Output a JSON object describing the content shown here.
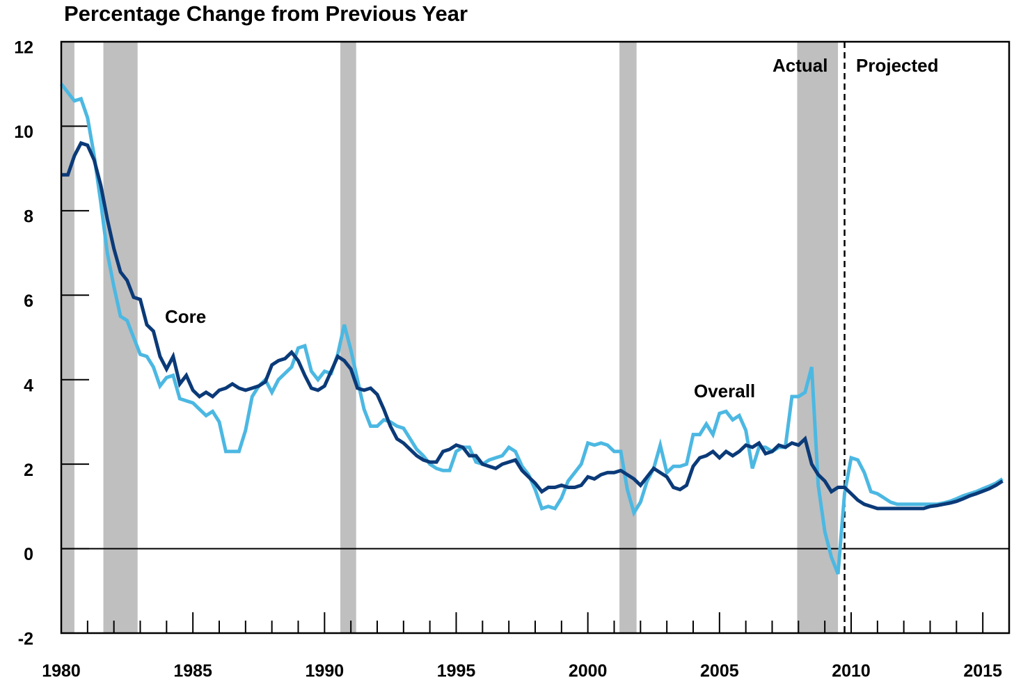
{
  "chart_data": {
    "type": "line",
    "title": "Percentage Change from Previous Year",
    "x": [
      1980,
      1980.25,
      1980.5,
      1980.75,
      1981,
      1981.25,
      1981.5,
      1981.75,
      1982,
      1982.25,
      1982.5,
      1982.75,
      1983,
      1983.25,
      1983.5,
      1983.75,
      1984,
      1984.25,
      1984.5,
      1984.75,
      1985,
      1985.25,
      1985.5,
      1985.75,
      1986,
      1986.25,
      1986.5,
      1986.75,
      1987,
      1987.25,
      1987.5,
      1987.75,
      1988,
      1988.25,
      1988.5,
      1988.75,
      1989,
      1989.25,
      1989.5,
      1989.75,
      1990,
      1990.25,
      1990.5,
      1990.75,
      1991,
      1991.25,
      1991.5,
      1991.75,
      1992,
      1992.25,
      1992.5,
      1992.75,
      1993,
      1993.25,
      1993.5,
      1993.75,
      1994,
      1994.25,
      1994.5,
      1994.75,
      1995,
      1995.25,
      1995.5,
      1995.75,
      1996,
      1996.25,
      1996.5,
      1996.75,
      1997,
      1997.25,
      1997.5,
      1997.75,
      1998,
      1998.25,
      1998.5,
      1998.75,
      1999,
      1999.25,
      1999.5,
      1999.75,
      2000,
      2000.25,
      2000.5,
      2000.75,
      2001,
      2001.25,
      2001.5,
      2001.75,
      2002,
      2002.25,
      2002.5,
      2002.75,
      2003,
      2003.25,
      2003.5,
      2003.75,
      2004,
      2004.25,
      2004.5,
      2004.75,
      2005,
      2005.25,
      2005.5,
      2005.75,
      2006,
      2006.25,
      2006.5,
      2006.75,
      2007,
      2007.25,
      2007.5,
      2007.75,
      2008,
      2008.25,
      2008.5,
      2008.75,
      2009,
      2009.25,
      2009.5,
      2009.75,
      2010,
      2010.25,
      2010.5,
      2010.75,
      2011,
      2011.25,
      2011.5,
      2011.75,
      2012,
      2012.25,
      2012.5,
      2012.75,
      2013,
      2013.25,
      2013.5,
      2013.75,
      2014,
      2014.25,
      2014.5,
      2014.75,
      2015,
      2015.25,
      2015.5,
      2015.75
    ],
    "series": [
      {
        "name": "Overall",
        "color": "#4cb8e2",
        "values": [
          11.0,
          10.8,
          10.6,
          10.65,
          10.2,
          9.3,
          8.2,
          7.0,
          6.2,
          5.5,
          5.4,
          5.0,
          4.6,
          4.55,
          4.3,
          3.85,
          4.05,
          4.1,
          3.55,
          3.5,
          3.45,
          3.3,
          3.15,
          3.25,
          3.0,
          2.3,
          2.3,
          2.3,
          2.8,
          3.6,
          3.85,
          4.0,
          3.7,
          4.0,
          4.15,
          4.3,
          4.75,
          4.8,
          4.2,
          4.0,
          4.2,
          4.15,
          4.6,
          5.3,
          4.7,
          4.0,
          3.3,
          2.9,
          2.9,
          3.05,
          3.0,
          2.9,
          2.85,
          2.6,
          2.35,
          2.2,
          2.0,
          1.9,
          1.85,
          1.85,
          2.3,
          2.4,
          2.4,
          2.05,
          2.0,
          2.1,
          2.15,
          2.2,
          2.4,
          2.3,
          1.95,
          1.75,
          1.4,
          0.95,
          1.0,
          0.95,
          1.2,
          1.6,
          1.8,
          2.0,
          2.5,
          2.45,
          2.5,
          2.45,
          2.3,
          2.3,
          1.4,
          0.85,
          1.1,
          1.6,
          1.9,
          2.45,
          1.8,
          1.95,
          1.95,
          2.0,
          2.7,
          2.7,
          2.95,
          2.7,
          3.2,
          3.25,
          3.05,
          3.15,
          2.8,
          1.9,
          2.4,
          2.4,
          2.3,
          2.4,
          2.4,
          3.6,
          3.6,
          3.7,
          4.3,
          1.5,
          0.4,
          -0.2,
          -0.6,
          1.3,
          2.15,
          2.1,
          1.8,
          1.35,
          1.3,
          1.2,
          1.1,
          1.05,
          1.05,
          1.05,
          1.05,
          1.05,
          1.05,
          1.05,
          1.08,
          1.12,
          1.18,
          1.25,
          1.3,
          1.35,
          1.42,
          1.48,
          1.55,
          1.65
        ]
      },
      {
        "name": "Core",
        "color": "#0b3a78",
        "values": [
          8.85,
          8.85,
          9.3,
          9.6,
          9.55,
          9.2,
          8.6,
          7.8,
          7.1,
          6.55,
          6.35,
          5.95,
          5.9,
          5.3,
          5.15,
          4.55,
          4.25,
          4.55,
          3.9,
          4.1,
          3.75,
          3.6,
          3.7,
          3.6,
          3.75,
          3.8,
          3.9,
          3.8,
          3.75,
          3.8,
          3.85,
          3.95,
          4.35,
          4.45,
          4.5,
          4.65,
          4.45,
          4.1,
          3.8,
          3.75,
          3.85,
          4.2,
          4.55,
          4.45,
          4.25,
          3.8,
          3.75,
          3.8,
          3.65,
          3.3,
          2.9,
          2.6,
          2.5,
          2.35,
          2.2,
          2.1,
          2.05,
          2.05,
          2.3,
          2.35,
          2.45,
          2.4,
          2.2,
          2.2,
          2.0,
          1.95,
          1.9,
          2.0,
          2.05,
          2.1,
          1.85,
          1.7,
          1.55,
          1.35,
          1.45,
          1.45,
          1.5,
          1.45,
          1.45,
          1.5,
          1.7,
          1.65,
          1.75,
          1.8,
          1.8,
          1.85,
          1.75,
          1.65,
          1.5,
          1.7,
          1.9,
          1.8,
          1.7,
          1.45,
          1.4,
          1.5,
          1.95,
          2.15,
          2.2,
          2.3,
          2.15,
          2.3,
          2.2,
          2.3,
          2.45,
          2.4,
          2.5,
          2.25,
          2.3,
          2.45,
          2.4,
          2.5,
          2.45,
          2.6,
          2.0,
          1.75,
          1.6,
          1.35,
          1.45,
          1.45,
          1.3,
          1.15,
          1.05,
          1.0,
          0.95,
          0.95,
          0.95,
          0.95,
          0.95,
          0.95,
          0.95,
          0.95,
          1.0,
          1.02,
          1.05,
          1.08,
          1.12,
          1.18,
          1.25,
          1.3,
          1.36,
          1.42,
          1.5,
          1.6
        ]
      }
    ],
    "xlim": [
      1980,
      2016
    ],
    "xticks": [
      1980,
      1985,
      1990,
      1995,
      2000,
      2005,
      2010,
      2015
    ],
    "xminorticks": [
      1981,
      1982,
      1983,
      1984,
      1986,
      1987,
      1988,
      1989,
      1991,
      1992,
      1993,
      1994,
      1996,
      1997,
      1998,
      1999,
      2001,
      2002,
      2003,
      2004,
      2006,
      2007,
      2008,
      2009,
      2011,
      2012,
      2013,
      2014
    ],
    "ylim": [
      -2,
      12
    ],
    "yticks": [
      -2,
      0,
      2,
      4,
      6,
      8,
      10,
      12
    ],
    "recessions": [
      [
        1980.0,
        1980.5
      ],
      [
        1981.6,
        1982.9
      ],
      [
        1990.6,
        1991.2
      ],
      [
        2001.2,
        2001.85
      ],
      [
        2007.95,
        2009.5
      ]
    ],
    "recession_color": "#bfbfbf",
    "projection_start": 2009.75,
    "annotations": [
      "Actual",
      "Projected"
    ]
  }
}
